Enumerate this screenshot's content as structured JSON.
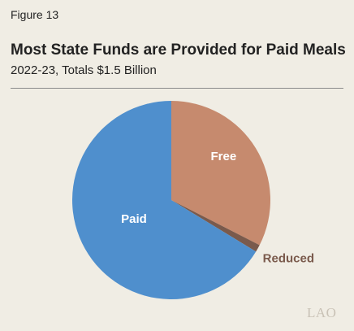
{
  "figure_label": "Figure 13",
  "title": "Most State Funds are Provided for Paid Meals",
  "subtitle": "2022-23, Totals $1.5 Billion",
  "logo_text": "LAO",
  "chart_data": {
    "type": "pie",
    "start": "12 o'clock",
    "direction": "clockwise",
    "slices": [
      {
        "label": "Free",
        "value": 32.5,
        "color": "#c68a6e",
        "label_color": "#ffffff",
        "label_placement": "inside"
      },
      {
        "label": "Reduced",
        "value": 1.2,
        "color": "#7a5a4c",
        "label_color": "#7a5a4c",
        "label_placement": "outside"
      },
      {
        "label": "Paid",
        "value": 66.3,
        "color": "#4f8fcd",
        "label_color": "#ffffff",
        "label_placement": "inside"
      }
    ],
    "unit": "percent of total",
    "legend": "none"
  }
}
